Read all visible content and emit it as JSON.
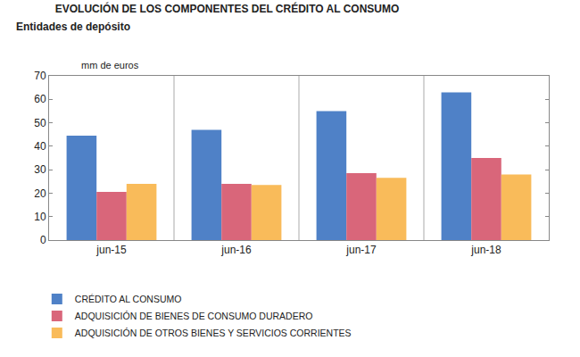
{
  "chart_data": {
    "type": "bar",
    "title": "EVOLUCIÓN DE LOS COMPONENTES DEL CRÉDITO AL CONSUMO",
    "subtitle": "Entidades de depósito",
    "ylabel": "mm de euros",
    "categories": [
      "jun-15",
      "jun-16",
      "jun-17",
      "jun-18"
    ],
    "series": [
      {
        "name": "CRÉDITO AL CONSUMO",
        "color": "#4f81c7",
        "values": [
          44.5,
          47,
          55,
          63
        ]
      },
      {
        "name": "ADQUISICIÓN DE BIENES DE CONSUMO DURADERO",
        "color": "#d9667a",
        "values": [
          20.5,
          24,
          28.5,
          35
        ]
      },
      {
        "name": "ADQUISICIÓN DE OTROS BIENES Y SERVICIOS CORRIENTES",
        "color": "#f9bb5a",
        "values": [
          24,
          23.5,
          26.5,
          28
        ]
      }
    ],
    "ylim": [
      0,
      70
    ],
    "yticks": [
      0,
      10,
      20,
      30,
      40,
      50,
      60,
      70
    ],
    "grid": false,
    "legend": "bottom"
  }
}
